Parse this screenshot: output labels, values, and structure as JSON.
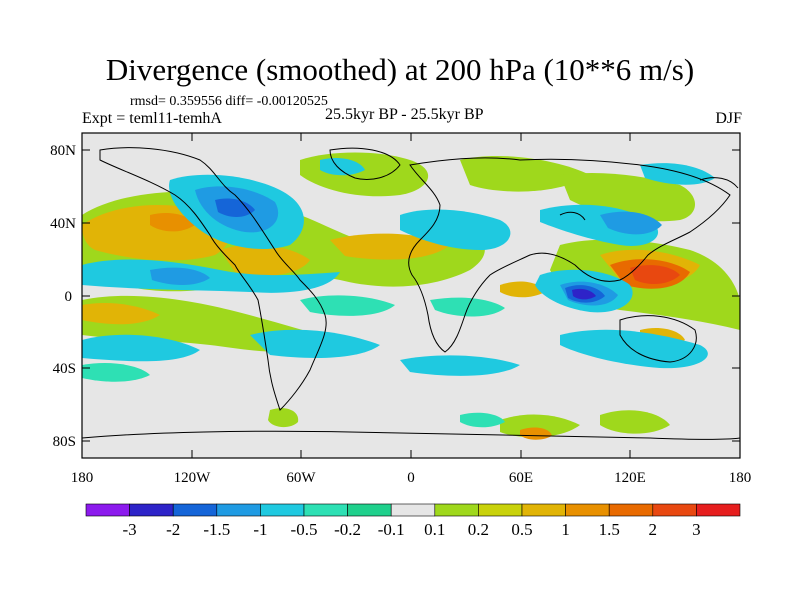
{
  "title": "Divergence (smoothed) at 200 hPa (10**6 m/s)",
  "stats": "rmsd= 0.359556 diff= -0.00120525",
  "experiment": "Expt = teml11-temhA",
  "period": "25.5kyr BP - 25.5kyr BP",
  "season": "DJF",
  "lat_labels": [
    "80N",
    "40N",
    "0",
    "40S",
    "80S"
  ],
  "lon_labels": [
    "180",
    "120W",
    "60W",
    "0",
    "60E",
    "120E",
    "180"
  ],
  "colorbar": {
    "colors": [
      "#8c1aed",
      "#2e23c8",
      "#1565d8",
      "#1f9be3",
      "#1fc9e0",
      "#2ee0b4",
      "#1fd08c",
      "#e6e6e6",
      "#9fd81c",
      "#c9d20c",
      "#e1b406",
      "#e89000",
      "#e86a00",
      "#e84810",
      "#e61e1e"
    ],
    "labels": [
      "-3",
      "-2",
      "-1.5",
      "-1",
      "-0.5",
      "-0.2",
      "-0.1",
      "0.1",
      "0.2",
      "0.5",
      "1",
      "1.5",
      "2",
      "3"
    ]
  }
}
